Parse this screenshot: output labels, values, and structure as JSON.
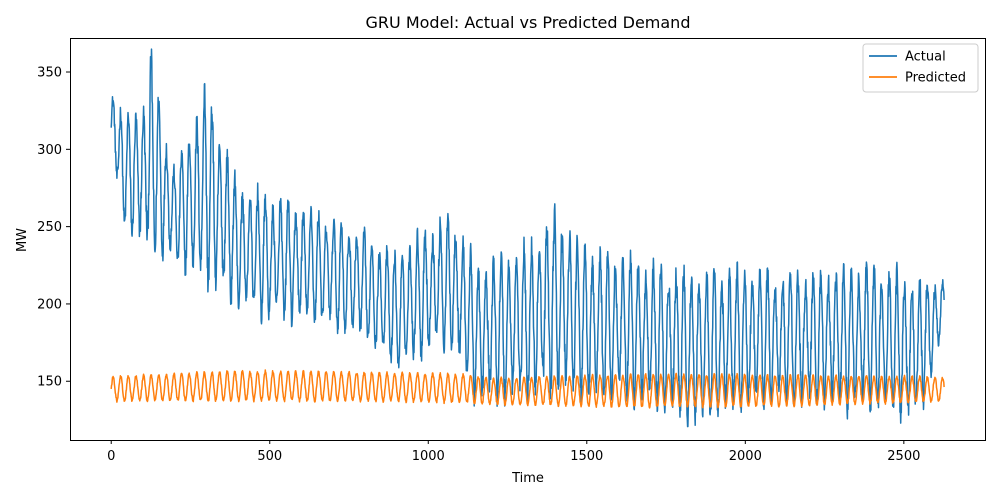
{
  "chart_data": {
    "type": "line",
    "title": "GRU Model: Actual vs Predicted Demand",
    "xlabel": "Time",
    "ylabel": "MW",
    "xlim": [
      -130,
      2756
    ],
    "ylim": [
      112,
      372
    ],
    "xticks": [
      0,
      500,
      1000,
      1500,
      2000,
      2500
    ],
    "yticks": [
      150,
      200,
      250,
      300,
      350
    ],
    "grid": false,
    "legend_position": "top-right",
    "n_points": 2628,
    "series": [
      {
        "name": "Actual",
        "color": "#1f77b4",
        "period": 24,
        "keypoints": [
          {
            "x": 0,
            "peak": 342,
            "trough": 294
          },
          {
            "x": 40,
            "peak": 320,
            "trough": 250
          },
          {
            "x": 110,
            "peak": 330,
            "trough": 238
          },
          {
            "x": 125,
            "peak": 360,
            "trough": 235
          },
          {
            "x": 200,
            "peak": 285,
            "trough": 228
          },
          {
            "x": 300,
            "peak": 340,
            "trough": 215
          },
          {
            "x": 400,
            "peak": 275,
            "trough": 200
          },
          {
            "x": 500,
            "peak": 270,
            "trough": 190
          },
          {
            "x": 650,
            "peak": 260,
            "trough": 188
          },
          {
            "x": 800,
            "peak": 245,
            "trough": 178
          },
          {
            "x": 900,
            "peak": 230,
            "trough": 158
          },
          {
            "x": 1000,
            "peak": 250,
            "trough": 170
          },
          {
            "x": 1080,
            "peak": 256,
            "trough": 172
          },
          {
            "x": 1150,
            "peak": 225,
            "trough": 137
          },
          {
            "x": 1300,
            "peak": 235,
            "trough": 140
          },
          {
            "x": 1400,
            "peak": 258,
            "trough": 145
          },
          {
            "x": 1500,
            "peak": 235,
            "trough": 140
          },
          {
            "x": 1700,
            "peak": 225,
            "trough": 137
          },
          {
            "x": 1870,
            "peak": 220,
            "trough": 121
          },
          {
            "x": 2000,
            "peak": 222,
            "trough": 135
          },
          {
            "x": 2200,
            "peak": 220,
            "trough": 135
          },
          {
            "x": 2400,
            "peak": 225,
            "trough": 132
          },
          {
            "x": 2550,
            "peak": 215,
            "trough": 128
          },
          {
            "x": 2628,
            "peak": 215,
            "trough": 184
          }
        ]
      },
      {
        "name": "Predicted",
        "color": "#ff7f0e",
        "period": 24,
        "keypoints": [
          {
            "x": 0,
            "peak": 153,
            "trough": 137
          },
          {
            "x": 400,
            "peak": 157,
            "trough": 137
          },
          {
            "x": 800,
            "peak": 156,
            "trough": 137
          },
          {
            "x": 1100,
            "peak": 155,
            "trough": 136
          },
          {
            "x": 1200,
            "peak": 152,
            "trough": 135
          },
          {
            "x": 1700,
            "peak": 155,
            "trough": 133
          },
          {
            "x": 2200,
            "peak": 154,
            "trough": 134
          },
          {
            "x": 2628,
            "peak": 153,
            "trough": 137
          }
        ]
      }
    ]
  }
}
